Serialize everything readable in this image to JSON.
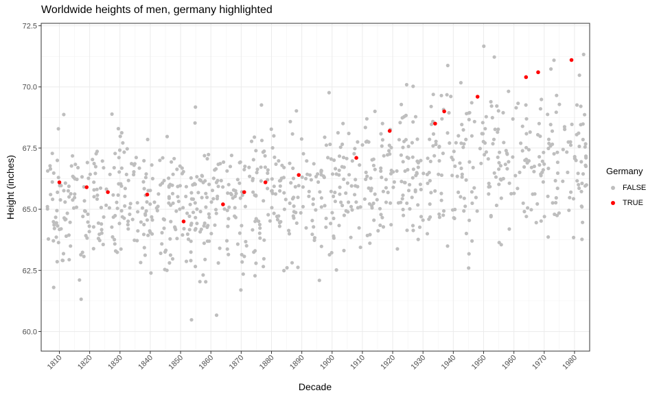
{
  "chart_data": {
    "type": "scatter",
    "title": "Worldwide heights of men, germany highlighted",
    "xlabel": "Decade",
    "ylabel": "Height (inches)",
    "xlim": [
      1804,
      1985
    ],
    "ylim": [
      59.2,
      72.6
    ],
    "x_ticks": [
      1810,
      1820,
      1830,
      1840,
      1850,
      1860,
      1870,
      1880,
      1890,
      1900,
      1910,
      1920,
      1930,
      1940,
      1950,
      1960,
      1970,
      1980
    ],
    "y_ticks": [
      60.0,
      62.5,
      65.0,
      67.5,
      70.0,
      72.5
    ],
    "y_tick_labels": [
      "60.0",
      "62.5",
      "65.0",
      "67.5",
      "70.0",
      "72.5"
    ],
    "grid": true,
    "legend": {
      "title": "Germany",
      "position": "right",
      "entries": [
        {
          "label": "FALSE",
          "color": "#bebebe"
        },
        {
          "label": "TRUE",
          "color": "#ff0000"
        }
      ]
    },
    "series": [
      {
        "name": "TRUE",
        "color": "#ff0000",
        "points": [
          [
            1810,
            66.1
          ],
          [
            1819,
            65.9
          ],
          [
            1826,
            65.7
          ],
          [
            1839,
            65.6
          ],
          [
            1851,
            64.5
          ],
          [
            1864,
            65.2
          ],
          [
            1871,
            65.7
          ],
          [
            1878,
            66.1
          ],
          [
            1889,
            66.4
          ],
          [
            1908,
            67.1
          ],
          [
            1919,
            68.2
          ],
          [
            1934,
            68.5
          ],
          [
            1937,
            69.0
          ],
          [
            1948,
            69.6
          ],
          [
            1964,
            70.4
          ],
          [
            1968,
            70.6
          ],
          [
            1979,
            71.1
          ]
        ]
      },
      {
        "name": "FALSE",
        "color": "#bebebe",
        "generator": {
          "seed": 20240611,
          "count": 1000
        }
      }
    ]
  }
}
